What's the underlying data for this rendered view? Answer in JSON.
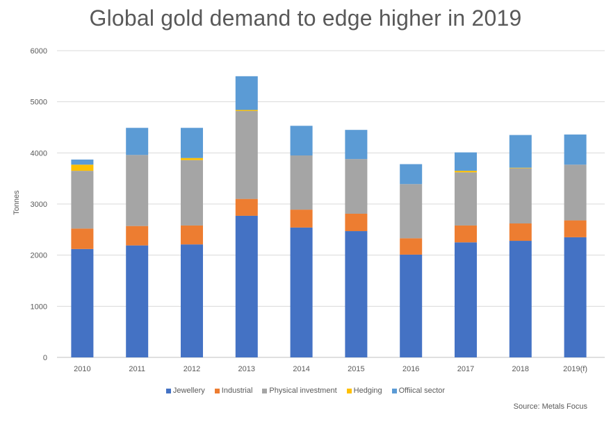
{
  "chart_data": {
    "type": "bar",
    "stacked": true,
    "title": "Global gold demand to edge higher in 2019",
    "xlabel": "",
    "ylabel": "Tonnes",
    "ylim": [
      0,
      6000
    ],
    "yticks": [
      0,
      1000,
      2000,
      3000,
      4000,
      5000,
      6000
    ],
    "grid": true,
    "legend_position": "bottom",
    "categories": [
      "2010",
      "2011",
      "2012",
      "2013",
      "2014",
      "2015",
      "2016",
      "2017",
      "2018",
      "2019(f)"
    ],
    "series": [
      {
        "name": "Jewellery",
        "color": "#4472C4",
        "values": [
          2120,
          2190,
          2210,
          2770,
          2540,
          2470,
          2010,
          2250,
          2280,
          2350
        ]
      },
      {
        "name": "Industrial",
        "color": "#ED7D31",
        "values": [
          400,
          380,
          370,
          330,
          350,
          340,
          320,
          330,
          340,
          330
        ]
      },
      {
        "name": "Physical investment",
        "color": "#A5A5A5",
        "values": [
          1130,
          1390,
          1280,
          1720,
          1060,
          1070,
          1060,
          1040,
          1080,
          1090
        ]
      },
      {
        "name": "Hedging",
        "color": "#FFC000",
        "values": [
          120,
          0,
          40,
          20,
          0,
          0,
          0,
          30,
          10,
          0
        ]
      },
      {
        "name": "Offiical sector",
        "color": "#5B9BD5",
        "values": [
          100,
          530,
          590,
          660,
          580,
          570,
          390,
          360,
          640,
          590
        ]
      }
    ],
    "source": "Source:  Metals Focus"
  }
}
